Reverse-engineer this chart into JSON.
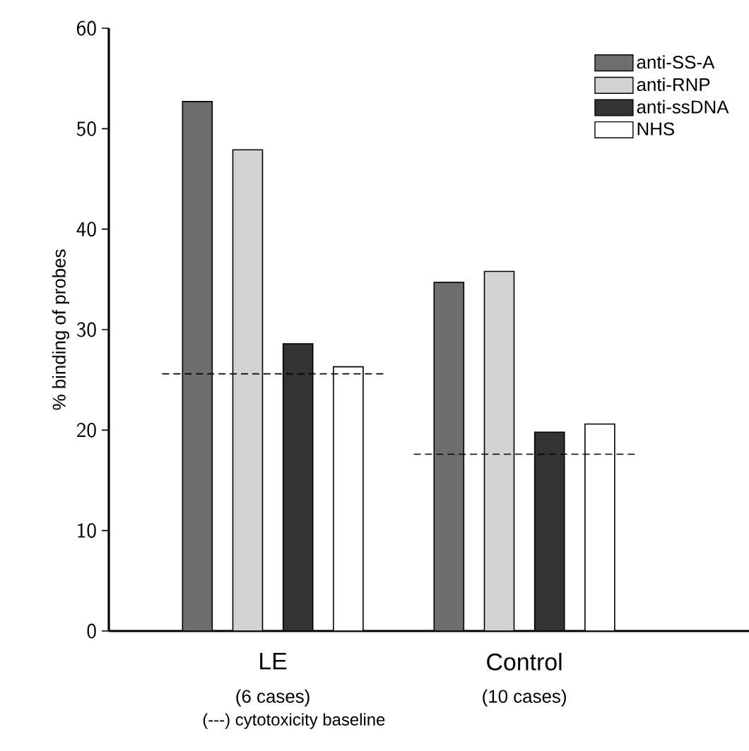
{
  "chart_data": {
    "type": "bar",
    "ylabel": "% binding of probes",
    "categories": [
      "LE",
      "Control"
    ],
    "series": [
      {
        "name": "anti-SS-A",
        "color": "#6e6e6e",
        "values": [
          52.7,
          34.7
        ]
      },
      {
        "name": "anti-RNP",
        "color": "#d2d2d2",
        "values": [
          47.9,
          35.8
        ]
      },
      {
        "name": "anti-ssDNA",
        "color": "#333333",
        "values": [
          28.6,
          19.8
        ]
      },
      {
        "name": "NHS",
        "color": "#ffffff",
        "values": [
          26.3,
          20.6
        ]
      }
    ],
    "ylim": [
      0,
      60
    ],
    "yticks": [
      0,
      10,
      20,
      30,
      40,
      50,
      60
    ],
    "ref_lines": [
      {
        "axis": "y",
        "value": 25.6,
        "line_style": "dashed"
      },
      {
        "axis": "y",
        "value": 17.6,
        "line_style": "dashed"
      }
    ],
    "annotations": [
      "(6 cases)",
      "(10 cases)",
      "(---) cytotoxicity baseline"
    ],
    "legend": "top right",
    "grid": false
  }
}
